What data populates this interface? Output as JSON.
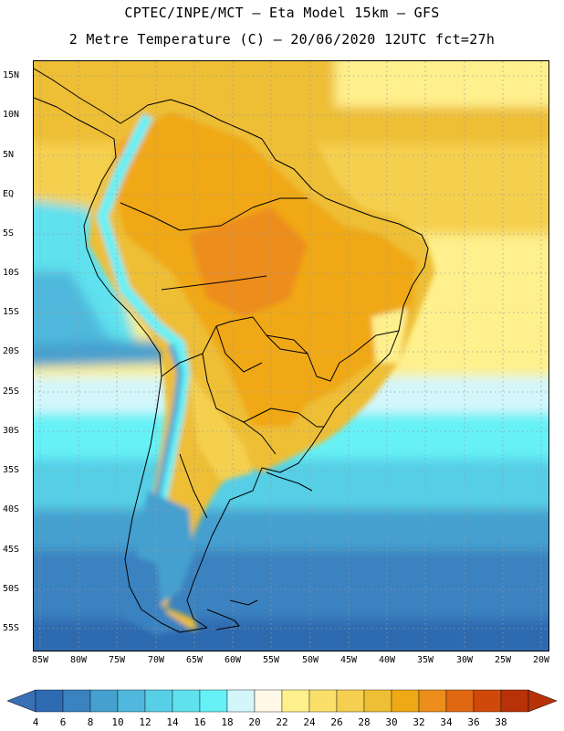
{
  "header": {
    "line1": "CPTEC/INPE/MCT –  Eta Model 15km – GFS",
    "line2": "2 Metre Temperature (C) – 20/06/2020 12UTC fct=27h"
  },
  "map": {
    "lat_labels": [
      "15N",
      "10N",
      "5N",
      "EQ",
      "5S",
      "10S",
      "15S",
      "20S",
      "25S",
      "30S",
      "35S",
      "40S",
      "45S",
      "50S",
      "55S"
    ],
    "lon_labels": [
      "85W",
      "80W",
      "75W",
      "70W",
      "65W",
      "60W",
      "55W",
      "50W",
      "45W",
      "40W",
      "35W",
      "30W",
      "25W",
      "20W"
    ],
    "background_color": "#2f6ab0"
  },
  "colorbar": {
    "labels": [
      "4",
      "6",
      "8",
      "10",
      "12",
      "14",
      "16",
      "18",
      "20",
      "22",
      "24",
      "26",
      "28",
      "30",
      "32",
      "34",
      "36",
      "38"
    ],
    "colors": [
      "#2f6bb3",
      "#3a82c0",
      "#45a0cf",
      "#4fb8dc",
      "#57cfe6",
      "#5fe1ee",
      "#66f1f7",
      "#d3f6fb",
      "#fff8e6",
      "#fef08c",
      "#fae06b",
      "#f5d050",
      "#eebe35",
      "#f0a815",
      "#ed8d1c",
      "#e06812",
      "#cf4a08",
      "#b83208"
    ],
    "low_color": "#3a6fb5",
    "high_color": "#b83208"
  }
}
